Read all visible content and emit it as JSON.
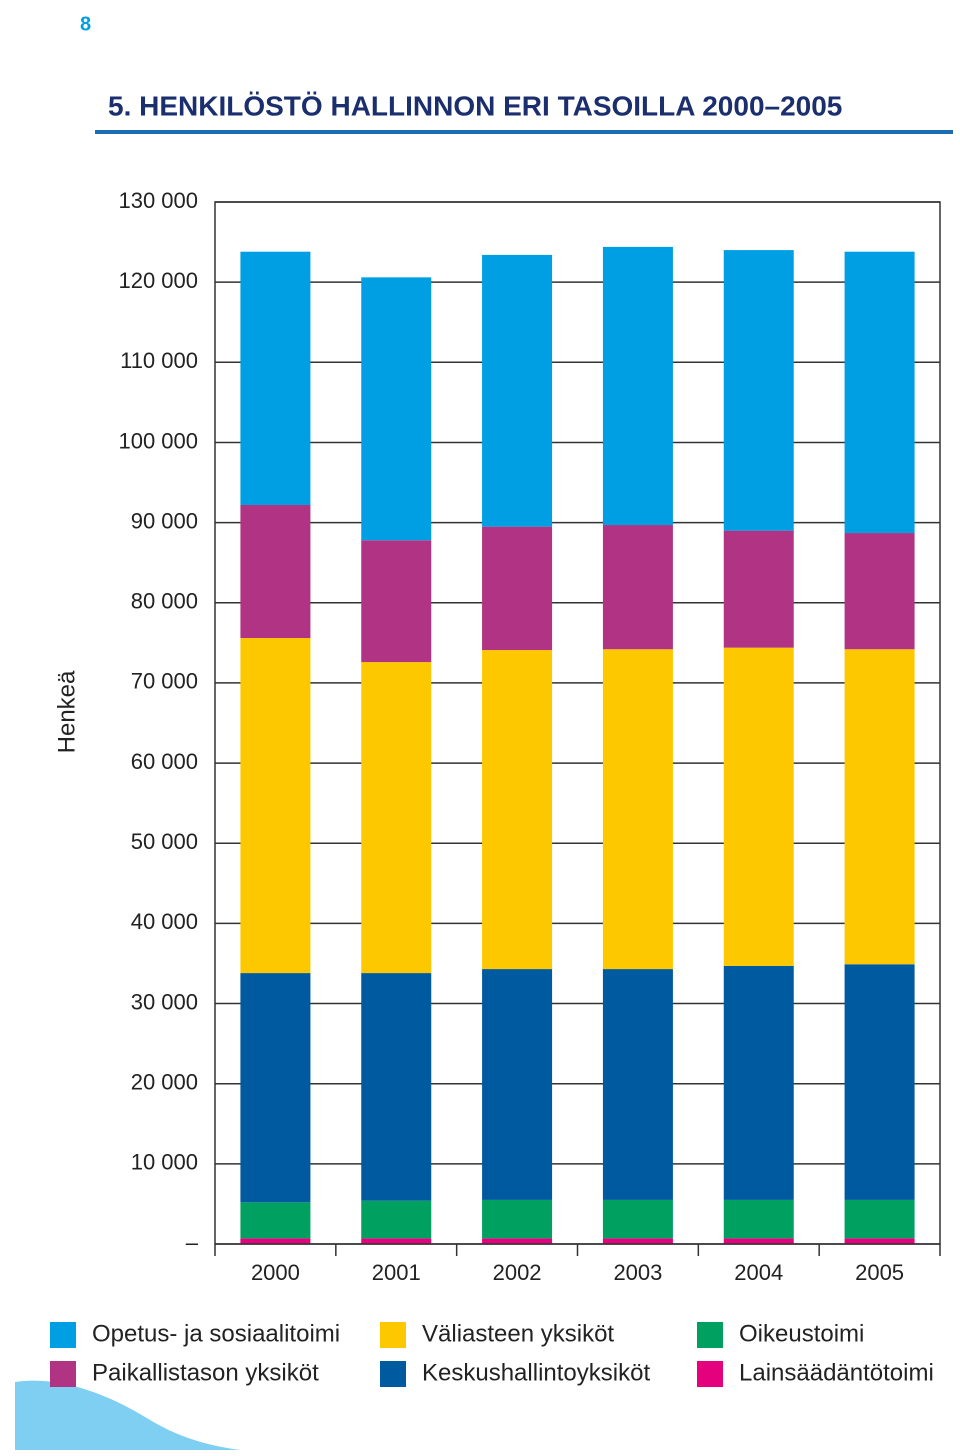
{
  "page_number": "8",
  "chart_data": {
    "type": "stacked_bar",
    "title": "5.   HENKILÖSTÖ HALLINNON ERI TASOILLA 2000–2005",
    "y_label": "Henkeä",
    "categories": [
      "2000",
      "2001",
      "2002",
      "2003",
      "2004",
      "2005"
    ],
    "series": [
      {
        "name": "Lainsäädäntötoimi",
        "color": "#e5007e",
        "values": [
          700,
          700,
          700,
          700,
          700,
          700
        ]
      },
      {
        "name": "Oikeustoimi",
        "color": "#00a060",
        "values": [
          4500,
          4700,
          4800,
          4800,
          4800,
          4800
        ]
      },
      {
        "name": "Keskushallintoyksiköt",
        "color": "#005aa0",
        "values": [
          28600,
          28400,
          28800,
          28800,
          29200,
          29400
        ]
      },
      {
        "name": "Väliasteen yksiköt",
        "color": "#fdc800",
        "values": [
          41800,
          38800,
          39800,
          39900,
          39700,
          39300
        ]
      },
      {
        "name": "Paikallistason yksiköt",
        "color": "#b03483",
        "values": [
          16600,
          15200,
          15400,
          15500,
          14600,
          14500
        ]
      },
      {
        "name": "Opetus- ja sosiaalitoimi",
        "color": "#009fe3",
        "values": [
          31600,
          32800,
          33900,
          34700,
          35000,
          35100
        ]
      }
    ],
    "ylim": [
      0,
      130000
    ],
    "yticks": [
      {
        "value": 0,
        "label": "–"
      },
      {
        "value": 10000,
        "label": "10 000"
      },
      {
        "value": 20000,
        "label": "20 000"
      },
      {
        "value": 30000,
        "label": "30 000"
      },
      {
        "value": 40000,
        "label": "40 000"
      },
      {
        "value": 50000,
        "label": "50 000"
      },
      {
        "value": 60000,
        "label": "60 000"
      },
      {
        "value": 70000,
        "label": "70 000"
      },
      {
        "value": 80000,
        "label": "80 000"
      },
      {
        "value": 90000,
        "label": "90 000"
      },
      {
        "value": 100000,
        "label": "100 000"
      },
      {
        "value": 110000,
        "label": "110 000"
      },
      {
        "value": 120000,
        "label": "120 000"
      },
      {
        "value": 130000,
        "label": "130 000"
      }
    ],
    "grid": true
  }
}
